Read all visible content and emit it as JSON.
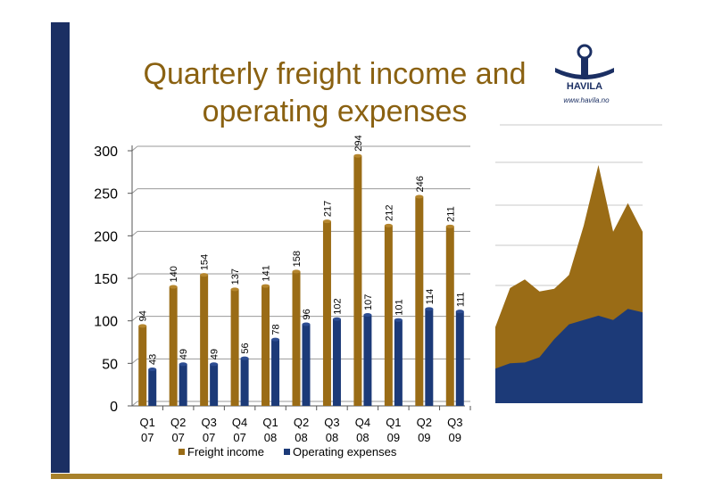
{
  "slide": {
    "title_line1": "Quarterly freight income and",
    "title_line2": "operating expenses",
    "logo_text": "HAVILA",
    "logo_url": "www.havila.no"
  },
  "colors": {
    "freight": "#9a6c16",
    "expenses": "#1c3a78",
    "sidebar": "#1b2f63",
    "footer_line": "#a8812a",
    "title": "#8a6111"
  },
  "chart_data": {
    "type": "bar",
    "title": "",
    "xlabel": "",
    "ylabel": "",
    "ylim": [
      0,
      300
    ],
    "yticks": [
      "0",
      "50",
      "100",
      "150",
      "200",
      "250",
      "300"
    ],
    "categories": [
      [
        "Q1",
        "07"
      ],
      [
        "Q2",
        "07"
      ],
      [
        "Q3",
        "07"
      ],
      [
        "Q4",
        "07"
      ],
      [
        "Q1",
        "08"
      ],
      [
        "Q2",
        "08"
      ],
      [
        "Q3",
        "08"
      ],
      [
        "Q4",
        "08"
      ],
      [
        "Q1",
        "09"
      ],
      [
        "Q2",
        "09"
      ],
      [
        "Q3",
        "09"
      ]
    ],
    "series": [
      {
        "name": "Freight income",
        "values": [
          94,
          140,
          154,
          137,
          141,
          158,
          217,
          294,
          212,
          246,
          211
        ]
      },
      {
        "name": "Operating expenses",
        "values": [
          43,
          49,
          49,
          56,
          78,
          96,
          102,
          107,
          101,
          114,
          111
        ]
      }
    ],
    "grid": true,
    "legend_position": "bottom",
    "data_labels": true,
    "inset_area": {
      "type": "area",
      "freight_values": [
        88,
        133,
        143,
        129,
        132,
        148,
        205,
        275,
        198,
        231,
        198
      ],
      "expense_values": [
        40,
        46,
        47,
        53,
        74,
        91,
        96,
        101,
        96,
        109,
        105
      ]
    }
  }
}
